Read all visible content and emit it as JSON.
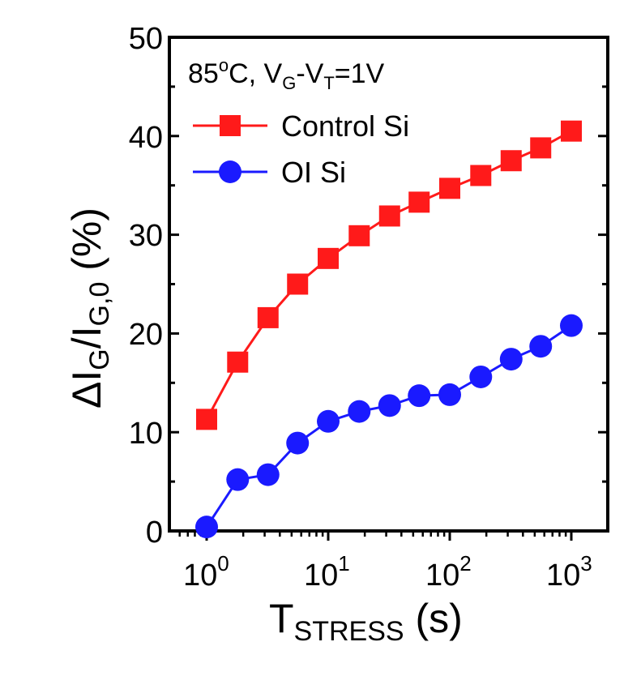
{
  "chart_data": {
    "type": "scatter",
    "x_scale": "log",
    "xlim": [
      0.5,
      2000
    ],
    "ylim": [
      0,
      50
    ],
    "yticks": [
      0,
      10,
      20,
      30,
      40,
      50
    ],
    "ytick_labels": [
      "0",
      "10",
      "20",
      "30",
      "40",
      "50"
    ],
    "xticks": [
      1,
      10,
      100,
      1000
    ],
    "xtick_labels": [
      {
        "base": "10",
        "exp": "0"
      },
      {
        "base": "10",
        "exp": "1"
      },
      {
        "base": "10",
        "exp": "2"
      },
      {
        "base": "10",
        "exp": "3"
      }
    ],
    "xlabel": {
      "main": "T",
      "sub": "STRESS",
      "unit": " (s)"
    },
    "ylabel": {
      "delta": "Δ",
      "i1": "I",
      "sub1": "G",
      "slash": "/I",
      "sub2": "G,0",
      "unit": " (%)"
    },
    "annotation": {
      "t1": "85",
      "sup": "o",
      "t2": "C, V",
      "sub1": "G",
      "t3": "-V",
      "sub2": "T",
      "t4": "=1V"
    },
    "legend_position": "top-left",
    "grid": false,
    "series": [
      {
        "name": "Control Si",
        "marker": "square",
        "color": "#ff1a1a",
        "x": [
          1,
          1.8,
          3.2,
          5.6,
          10,
          18,
          32,
          56,
          100,
          180,
          320,
          560,
          1000
        ],
        "y": [
          11.3,
          17.1,
          21.6,
          25.0,
          27.6,
          29.9,
          31.9,
          33.3,
          34.7,
          36.0,
          37.5,
          38.8,
          40.5
        ]
      },
      {
        "name": "OI Si",
        "marker": "circle",
        "color": "#1a1aff",
        "x": [
          1,
          1.8,
          3.2,
          5.6,
          10,
          18,
          32,
          56,
          100,
          180,
          320,
          560,
          1000
        ],
        "y": [
          0.4,
          5.2,
          5.7,
          8.9,
          11.1,
          12.1,
          12.7,
          13.7,
          13.8,
          15.6,
          17.4,
          18.7,
          20.8
        ]
      }
    ]
  }
}
